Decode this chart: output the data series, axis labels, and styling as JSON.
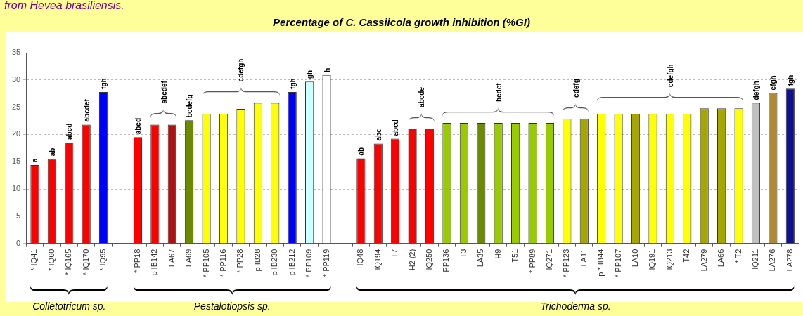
{
  "chart_data": {
    "type": "bar",
    "title": "Percentage of C. Cassiicola growth inhibition (%GI)",
    "categories": [
      "* IQ41",
      "* IQ60",
      "* IQ165",
      "* IQ170",
      "* IQ95",
      null,
      "* PP18",
      "p IB142",
      "LA67",
      "LA69",
      "* PP105",
      "* PP116",
      "* PP28",
      "p IB28",
      "p IB230",
      "p IB212",
      "* PP109",
      "* PP119",
      null,
      "IQ48",
      "IQ194",
      "T7",
      "H2 (2)",
      "IQ250",
      "PP136",
      "T3",
      "LA35",
      "H9",
      "T51",
      "* PP89",
      "IQ271",
      "* PP123",
      "LA11",
      "p * IB44",
      "* PP107",
      "LA10",
      "IQ191",
      "IQ213",
      "T42",
      "LA279",
      "LA66",
      "* T2",
      "IQ211",
      "LA276",
      "LA278"
    ],
    "values": [
      14.4,
      15.5,
      18.5,
      21.8,
      27.8,
      null,
      19.5,
      21.8,
      21.8,
      22.6,
      23.8,
      23.8,
      24.7,
      25.8,
      25.8,
      27.8,
      29.7,
      30.9,
      null,
      15.6,
      18.3,
      19.2,
      21.1,
      21.1,
      22.1,
      22.1,
      22.1,
      22.1,
      22.1,
      22.1,
      22.1,
      22.9,
      22.9,
      23.8,
      23.8,
      23.8,
      23.8,
      23.8,
      23.8,
      24.8,
      24.8,
      24.8,
      25.8,
      27.6,
      28.4
    ],
    "colors": [
      "#ff0000",
      "#ff0000",
      "#ff0000",
      "#ff0000",
      "#0000ff",
      null,
      "#ff0000",
      "#ff0000",
      "#b01010",
      "#6b8a00",
      "#ffff00",
      "#ffff00",
      "#ffff00",
      "#ffff00",
      "#ffff00",
      "#0000ff",
      "#ccffff",
      "#ffffff",
      null,
      "#ff0000",
      "#ff0000",
      "#ff0000",
      "#ff0000",
      "#ff0000",
      "#99cc00",
      "#99cc00",
      "#6b8a00",
      "#99cc00",
      "#99cc00",
      "#99cc00",
      "#99cc00",
      "#ffff00",
      "#a6a600",
      "#ffff00",
      "#ffff00",
      "#a6a600",
      "#ffff00",
      "#ffff00",
      "#ffff00",
      "#a6a600",
      "#a6a600",
      "#ffff00",
      "#c0c0c0",
      "#b08a30",
      "#101090"
    ],
    "value_labels": [
      "a",
      "ab",
      "abcd",
      "abcdef",
      "fgh",
      null,
      "abcd",
      null,
      null,
      "bcdefg",
      null,
      null,
      null,
      null,
      null,
      "fgh",
      "gh",
      "h",
      null,
      "ab",
      "abc",
      "abcd",
      null,
      null,
      null,
      null,
      null,
      null,
      null,
      null,
      null,
      null,
      null,
      null,
      null,
      null,
      null,
      null,
      null,
      null,
      null,
      null,
      "defgh",
      "efgh",
      "fgh"
    ],
    "annotations": [
      "from Hevea brasiliensis.",
      "abcdef",
      "cdefgh",
      "abcde",
      "bcdef",
      "cdefg",
      "cdefgh",
      "Colletotricum sp.",
      "Pestalotiopsis sp.",
      "Trichoderma sp."
    ],
    "ylim": [
      0,
      35
    ],
    "yticks": [
      0,
      5,
      10,
      15,
      20,
      25,
      30,
      35
    ],
    "grid": "y",
    "legend": false
  }
}
